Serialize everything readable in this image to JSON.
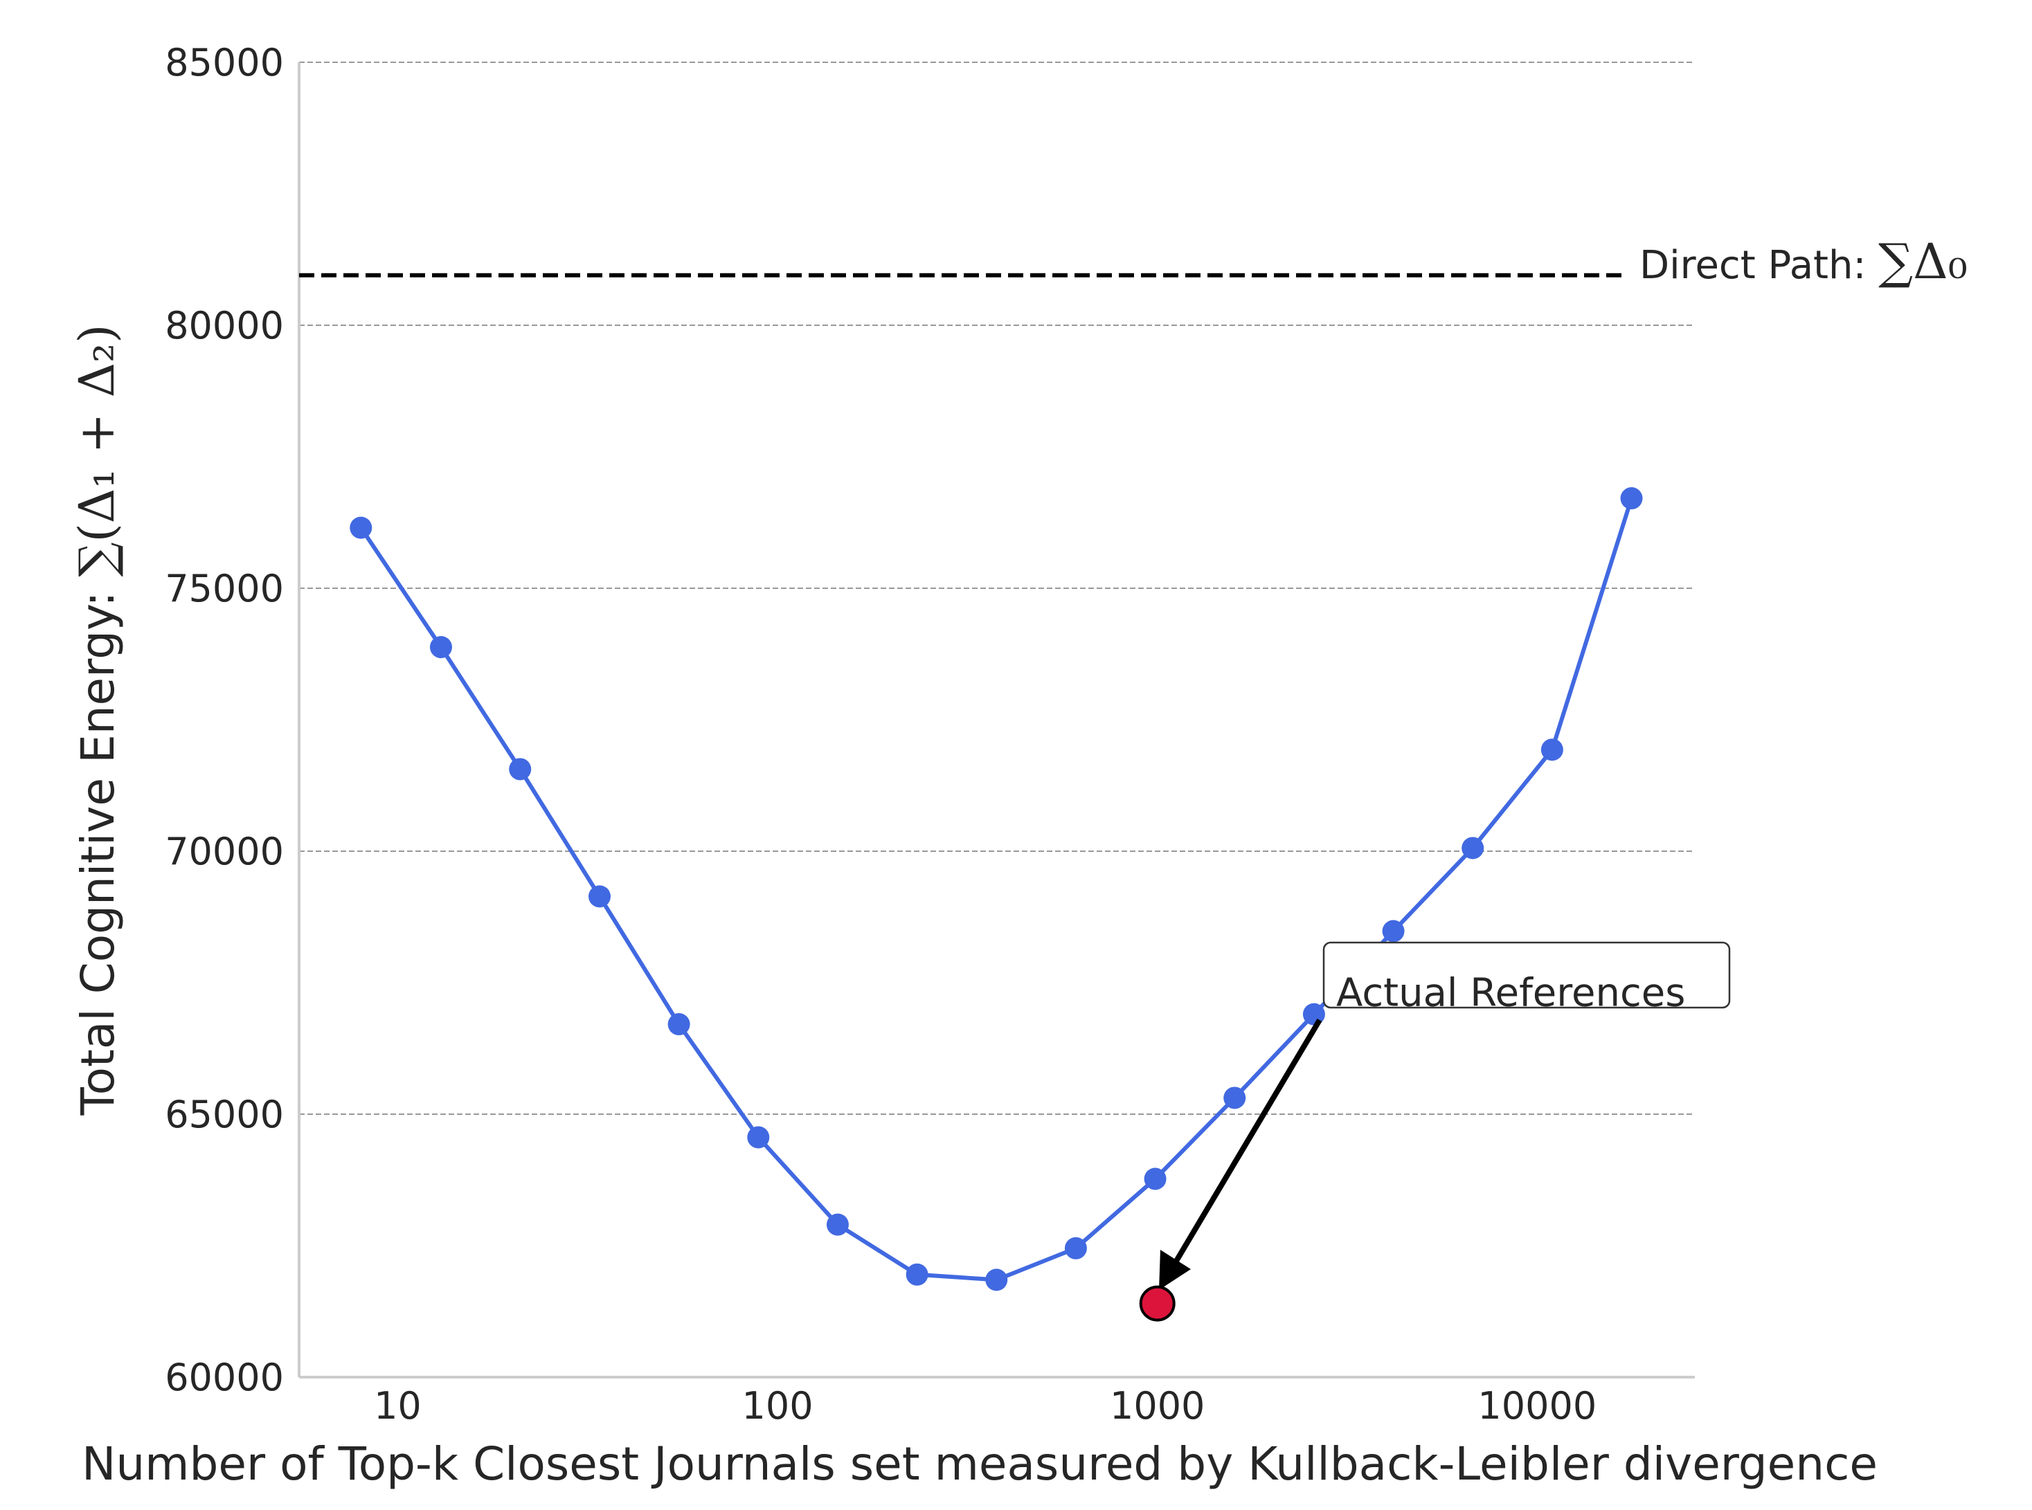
{
  "chart_data": {
    "type": "line",
    "xlabel": "Number of Top-k Closest Journals set measured by Kullback-Leibler divergence",
    "ylabel_prefix": "Total Cognitive Energy: ",
    "ylabel_math": "∑(Δ₁ + Δ₂)",
    "x_scale": "log",
    "xlim": [
      5.5,
      26000
    ],
    "ylim": [
      60000,
      85000
    ],
    "x_ticks": [
      10,
      100,
      1000,
      10000
    ],
    "x_tick_labels": [
      "10",
      "100",
      "1000",
      "10000"
    ],
    "y_ticks": [
      60000,
      65000,
      70000,
      75000,
      80000,
      85000
    ],
    "y_tick_labels": [
      "60000",
      "65000",
      "70000",
      "75000",
      "80000",
      "85000"
    ],
    "grid": "horizontal dashed",
    "series": [
      {
        "color": "#4169e1",
        "x": [
          8,
          13,
          21,
          34,
          55,
          89,
          144,
          233,
          377,
          610,
          987,
          1597,
          2584,
          4181,
          6765,
          10946,
          17711
        ],
        "y": [
          76150,
          73880,
          71560,
          69140,
          66710,
          64560,
          62900,
          61950,
          61850,
          62450,
          63770,
          65310,
          66900,
          68480,
          70060,
          71930,
          76710
        ]
      }
    ],
    "reference_line": {
      "y": 80950,
      "style": "dashed",
      "color": "#000000",
      "label_text": "Direct Path: ",
      "label_math": "∑Δ₀"
    },
    "highlight_point": {
      "x": 1000,
      "y": 61400,
      "color": "#dc143c",
      "annotation": "Actual References",
      "annotation_x": 2700,
      "annotation_y": 67400
    }
  }
}
